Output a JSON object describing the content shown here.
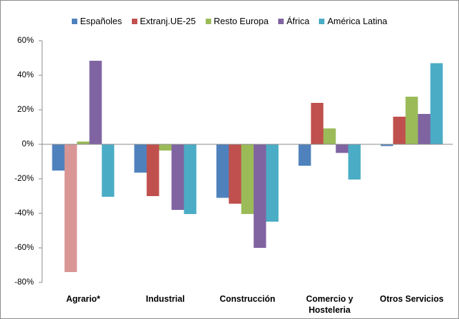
{
  "chart_data": {
    "type": "bar",
    "categories": [
      "Agrario*",
      "Industrial",
      "Construcción",
      "Comercio y Hosteleria",
      "Otros Servicios"
    ],
    "series": [
      {
        "name": "Españoles",
        "color": "#4f81bd",
        "values": [
          -15.2,
          -16.4,
          -31,
          -12.4,
          -1
        ]
      },
      {
        "name": "Extranj.UE-25",
        "color": "#c0504d",
        "colors": [
          "#d99694",
          "#c0504d",
          "#c0504d",
          "#c0504d",
          "#c0504d"
        ],
        "values": [
          -74,
          -30,
          -34.4,
          24,
          16
        ]
      },
      {
        "name": "Resto Europa",
        "color": "#9bbb59",
        "values": [
          1.6,
          -3.6,
          -40.4,
          9.2,
          27.6
        ]
      },
      {
        "name": "África",
        "color": "#8064a2",
        "values": [
          48.4,
          -38,
          -60,
          -5,
          17.6
        ]
      },
      {
        "name": "América Latina",
        "color": "#4bacc6",
        "values": [
          -30.4,
          -40.4,
          -44.8,
          -20.4,
          47
        ]
      }
    ],
    "ylim": [
      -80,
      60
    ],
    "yticks": [
      {
        "value": -80,
        "label": "-80%"
      },
      {
        "value": -60,
        "label": "-60%"
      },
      {
        "value": -40,
        "label": "-40%"
      },
      {
        "value": -20,
        "label": "-20%"
      },
      {
        "value": 0,
        "label": "0%"
      },
      {
        "value": 20,
        "label": "20%"
      },
      {
        "value": 40,
        "label": "40%"
      },
      {
        "value": 60,
        "label": "60%"
      }
    ]
  }
}
